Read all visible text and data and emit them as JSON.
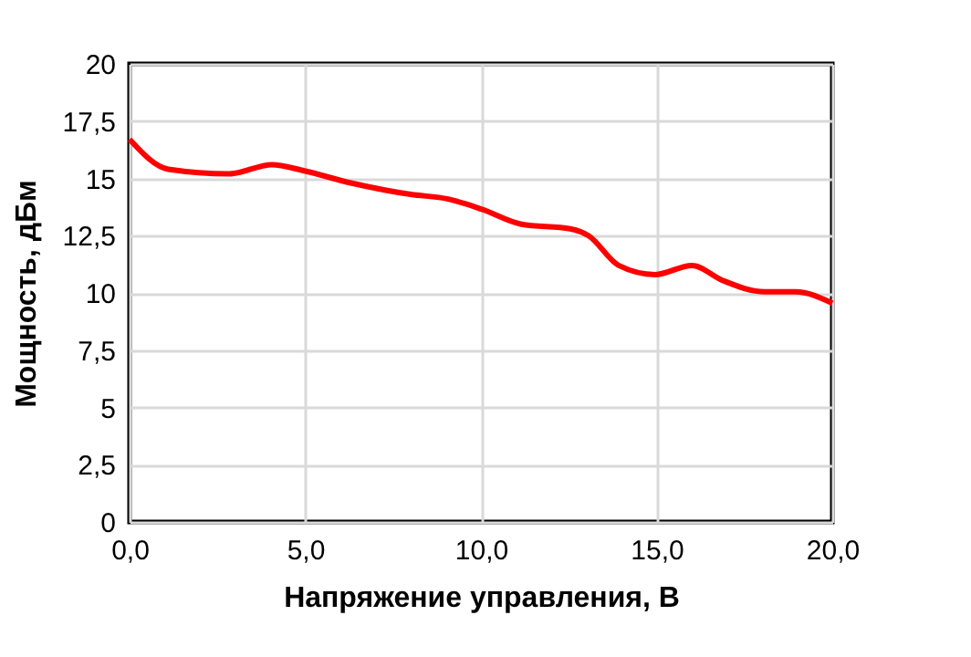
{
  "chart_data": {
    "type": "line",
    "xlabel": "Напряжение управления, В",
    "ylabel": "Мощность, дБм",
    "x": [
      0,
      1.1,
      2.84,
      4.05,
      4.92,
      6.3,
      8.0,
      9.07,
      10.03,
      11.15,
      12.54,
      13.06,
      13.92,
      14.96,
      16.0,
      16.87,
      18.08,
      18.95,
      20
    ],
    "series": [
      {
        "color": "#ff0000",
        "values": [
          16.7,
          15.4,
          15.2,
          15.6,
          15.35,
          14.8,
          14.3,
          14.1,
          13.65,
          13.0,
          12.8,
          12.5,
          11.2,
          10.8,
          11.2,
          10.55,
          10.05,
          10.05,
          9.55
        ]
      }
    ],
    "xlim": [
      0,
      20
    ],
    "ylim": [
      0,
      20
    ],
    "xticks": [
      {
        "value": 0,
        "label": "0,0"
      },
      {
        "value": 5,
        "label": "5,0"
      },
      {
        "value": 10,
        "label": "10,0"
      },
      {
        "value": 15,
        "label": "15,0"
      },
      {
        "value": 20,
        "label": "20,0"
      }
    ],
    "yticks": [
      0,
      {
        "value": 2.5,
        "label": "2,5"
      },
      5,
      {
        "value": 7.5,
        "label": "7,5"
      },
      10,
      {
        "value": 12.5,
        "label": "12,5"
      },
      15,
      {
        "value": 17.5,
        "label": "17,5"
      },
      20
    ],
    "grid": true,
    "marker": "none",
    "line_style": "solid"
  }
}
